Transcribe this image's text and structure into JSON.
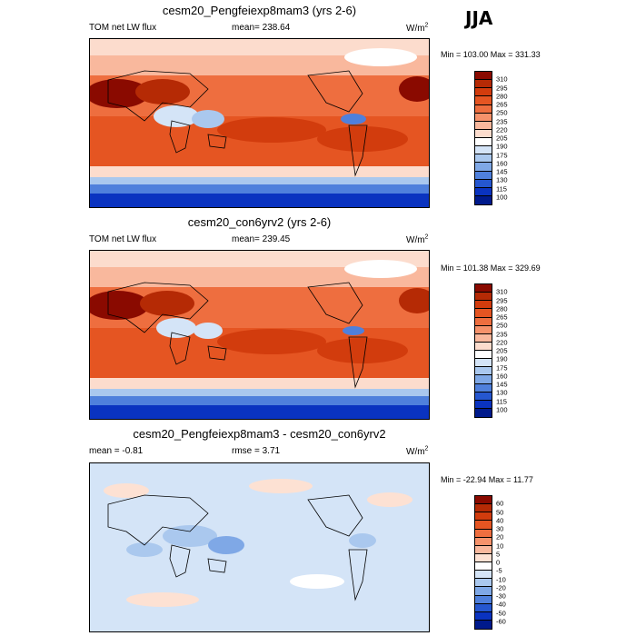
{
  "season": "JJA",
  "panels": [
    {
      "id": "exp",
      "title": "cesm20_Pengfeiexp8mam3 (yrs 2-6)",
      "left_label": "TOM net LW flux",
      "mid_label": "mean= 238.64",
      "units": "W/m2",
      "minmax": "Min = 103.00 Max = 331.33",
      "colorbar": {
        "levels": [
          "310",
          "295",
          "280",
          "265",
          "250",
          "235",
          "220",
          "205",
          "190",
          "175",
          "160",
          "145",
          "130",
          "115",
          "100"
        ],
        "colors": [
          "#8a0a00",
          "#b52a05",
          "#d23c0d",
          "#e55522",
          "#ee6e3f",
          "#f6926b",
          "#f9b89d",
          "#fcdccd",
          "#ffffff",
          "#d4e4f7",
          "#aac8ee",
          "#7fa8e6",
          "#4f80dc",
          "#2557d0",
          "#0a33c0",
          "#001a8c"
        ]
      }
    },
    {
      "id": "ctl",
      "title": "cesm20_con6yrv2 (yrs 2-6)",
      "left_label": "TOM net LW flux",
      "mid_label": "mean= 239.45",
      "units": "W/m2",
      "minmax": "Min = 101.38 Max = 329.69",
      "colorbar": {
        "levels": [
          "310",
          "295",
          "280",
          "265",
          "250",
          "235",
          "220",
          "205",
          "190",
          "175",
          "160",
          "145",
          "130",
          "115",
          "100"
        ],
        "colors": [
          "#8a0a00",
          "#b52a05",
          "#d23c0d",
          "#e55522",
          "#ee6e3f",
          "#f6926b",
          "#f9b89d",
          "#fcdccd",
          "#ffffff",
          "#d4e4f7",
          "#aac8ee",
          "#7fa8e6",
          "#4f80dc",
          "#2557d0",
          "#0a33c0",
          "#001a8c"
        ]
      }
    },
    {
      "id": "diff",
      "title": "cesm20_Pengfeiexp8mam3 - cesm20_con6yrv2",
      "left_label": "mean =  -0.81",
      "mid_label": "rmse =   3.71",
      "units": "W/m2",
      "minmax": "Min = -22.94 Max =  11.77",
      "colorbar": {
        "levels": [
          "60",
          "50",
          "40",
          "30",
          "20",
          "10",
          "5",
          "0",
          "-5",
          "-10",
          "-20",
          "-30",
          "-40",
          "-50",
          "-60"
        ],
        "colors": [
          "#8a0a00",
          "#b52a05",
          "#d23c0d",
          "#e55522",
          "#ee6e3f",
          "#f6926b",
          "#f9b89d",
          "#fde1d3",
          "#ffffff",
          "#d4e4f7",
          "#aac8ee",
          "#7fa8e6",
          "#4f80dc",
          "#2557d0",
          "#0a33c0",
          "#001a8c"
        ]
      }
    }
  ]
}
